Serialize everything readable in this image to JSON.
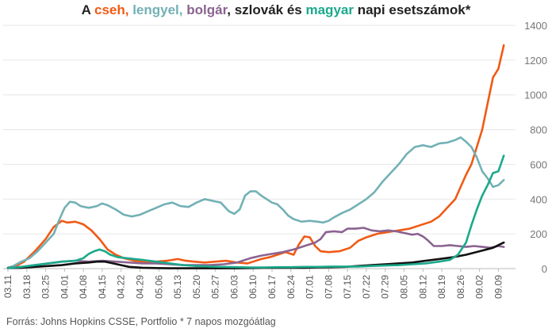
{
  "title": {
    "parts": [
      {
        "text": "A ",
        "color": "#222222"
      },
      {
        "text": "cseh, ",
        "color": "#f05a16"
      },
      {
        "text": "lengyel, ",
        "color": "#72b1b5"
      },
      {
        "text": "bolgár",
        "color": "#8a6390"
      },
      {
        "text": ", szlovák és ",
        "color": "#222222"
      },
      {
        "text": "magyar",
        "color": "#1ba98c"
      },
      {
        "text": " napi esetszámok*",
        "color": "#222222"
      }
    ]
  },
  "source": "Forrás: Johns Hopkins CSSE, Portfolio   * 7 napos mozgóátlag",
  "chart_data": {
    "type": "line",
    "x_tick_labels": [
      "03.11",
      "03.18",
      "03.25",
      "04.01",
      "04.08",
      "04.15",
      "04.22",
      "04.29",
      "05.06",
      "05.13",
      "05.20",
      "05.27",
      "06.03",
      "06.10",
      "06.17",
      "06.24",
      "07.01",
      "07.08",
      "07.15",
      "07.22",
      "07.29",
      "08.05",
      "08.12",
      "08.19",
      "08.26",
      "09.02",
      "09.09"
    ],
    "x_range_days": [
      0,
      186
    ],
    "ylim": [
      0,
      1400
    ],
    "y_ticks": [
      0,
      200,
      400,
      600,
      800,
      1000,
      1200,
      1400
    ],
    "y_axis_side": "right",
    "grid": "horizontal",
    "series": [
      {
        "name": "cseh",
        "color": "#f05a16",
        "points": [
          [
            0,
            5
          ],
          [
            3,
            15
          ],
          [
            6,
            40
          ],
          [
            10,
            100
          ],
          [
            14,
            170
          ],
          [
            17,
            240
          ],
          [
            20,
            275
          ],
          [
            22,
            265
          ],
          [
            25,
            270
          ],
          [
            28,
            255
          ],
          [
            31,
            220
          ],
          [
            34,
            170
          ],
          [
            37,
            110
          ],
          [
            40,
            80
          ],
          [
            43,
            60
          ],
          [
            47,
            45
          ],
          [
            51,
            40
          ],
          [
            55,
            40
          ],
          [
            59,
            45
          ],
          [
            63,
            55
          ],
          [
            66,
            45
          ],
          [
            69,
            40
          ],
          [
            73,
            35
          ],
          [
            77,
            40
          ],
          [
            81,
            45
          ],
          [
            85,
            35
          ],
          [
            89,
            30
          ],
          [
            91,
            40
          ],
          [
            94,
            55
          ],
          [
            97,
            65
          ],
          [
            100,
            80
          ],
          [
            103,
            95
          ],
          [
            106,
            80
          ],
          [
            108,
            140
          ],
          [
            110,
            185
          ],
          [
            112,
            180
          ],
          [
            114,
            130
          ],
          [
            116,
            100
          ],
          [
            119,
            95
          ],
          [
            123,
            100
          ],
          [
            127,
            120
          ],
          [
            130,
            160
          ],
          [
            133,
            180
          ],
          [
            137,
            200
          ],
          [
            141,
            210
          ],
          [
            145,
            220
          ],
          [
            149,
            230
          ],
          [
            153,
            250
          ],
          [
            157,
            270
          ],
          [
            160,
            300
          ],
          [
            163,
            350
          ],
          [
            166,
            400
          ],
          [
            168,
            470
          ],
          [
            170,
            540
          ],
          [
            172,
            600
          ],
          [
            174,
            700
          ],
          [
            176,
            800
          ],
          [
            178,
            950
          ],
          [
            180,
            1100
          ],
          [
            182,
            1150
          ],
          [
            184,
            1285
          ]
        ]
      },
      {
        "name": "lengyel",
        "color": "#72b1b5",
        "points": [
          [
            0,
            5
          ],
          [
            2,
            15
          ],
          [
            5,
            40
          ],
          [
            8,
            60
          ],
          [
            11,
            100
          ],
          [
            14,
            150
          ],
          [
            17,
            200
          ],
          [
            19,
            280
          ],
          [
            21,
            350
          ],
          [
            23,
            385
          ],
          [
            25,
            380
          ],
          [
            27,
            360
          ],
          [
            30,
            350
          ],
          [
            33,
            360
          ],
          [
            35,
            375
          ],
          [
            37,
            365
          ],
          [
            40,
            340
          ],
          [
            43,
            310
          ],
          [
            46,
            300
          ],
          [
            49,
            310
          ],
          [
            52,
            330
          ],
          [
            55,
            350
          ],
          [
            58,
            370
          ],
          [
            61,
            380
          ],
          [
            64,
            360
          ],
          [
            67,
            355
          ],
          [
            70,
            380
          ],
          [
            73,
            400
          ],
          [
            76,
            390
          ],
          [
            79,
            380
          ],
          [
            82,
            330
          ],
          [
            84,
            315
          ],
          [
            86,
            340
          ],
          [
            88,
            420
          ],
          [
            90,
            445
          ],
          [
            92,
            445
          ],
          [
            94,
            420
          ],
          [
            96,
            400
          ],
          [
            98,
            380
          ],
          [
            100,
            370
          ],
          [
            102,
            340
          ],
          [
            104,
            305
          ],
          [
            106,
            285
          ],
          [
            109,
            270
          ],
          [
            112,
            275
          ],
          [
            115,
            270
          ],
          [
            117,
            265
          ],
          [
            119,
            275
          ],
          [
            121,
            295
          ],
          [
            124,
            320
          ],
          [
            127,
            340
          ],
          [
            130,
            370
          ],
          [
            133,
            400
          ],
          [
            136,
            440
          ],
          [
            139,
            500
          ],
          [
            142,
            550
          ],
          [
            145,
            600
          ],
          [
            148,
            660
          ],
          [
            151,
            700
          ],
          [
            154,
            710
          ],
          [
            157,
            700
          ],
          [
            160,
            720
          ],
          [
            163,
            725
          ],
          [
            166,
            740
          ],
          [
            168,
            755
          ],
          [
            170,
            730
          ],
          [
            172,
            700
          ],
          [
            174,
            640
          ],
          [
            176,
            560
          ],
          [
            178,
            520
          ],
          [
            180,
            470
          ],
          [
            182,
            480
          ],
          [
            184,
            510
          ]
        ]
      },
      {
        "name": "bolgár",
        "color": "#8a6390",
        "points": [
          [
            0,
            5
          ],
          [
            5,
            10
          ],
          [
            10,
            20
          ],
          [
            15,
            30
          ],
          [
            20,
            40
          ],
          [
            25,
            45
          ],
          [
            30,
            40
          ],
          [
            35,
            45
          ],
          [
            40,
            40
          ],
          [
            45,
            35
          ],
          [
            50,
            30
          ],
          [
            55,
            30
          ],
          [
            60,
            25
          ],
          [
            65,
            20
          ],
          [
            70,
            20
          ],
          [
            75,
            20
          ],
          [
            80,
            25
          ],
          [
            85,
            35
          ],
          [
            90,
            60
          ],
          [
            94,
            75
          ],
          [
            98,
            85
          ],
          [
            102,
            95
          ],
          [
            106,
            110
          ],
          [
            110,
            130
          ],
          [
            114,
            150
          ],
          [
            116,
            170
          ],
          [
            118,
            210
          ],
          [
            121,
            215
          ],
          [
            124,
            210
          ],
          [
            126,
            230
          ],
          [
            129,
            230
          ],
          [
            132,
            235
          ],
          [
            135,
            220
          ],
          [
            138,
            215
          ],
          [
            141,
            220
          ],
          [
            144,
            215
          ],
          [
            147,
            205
          ],
          [
            150,
            195
          ],
          [
            152,
            200
          ],
          [
            154,
            185
          ],
          [
            156,
            160
          ],
          [
            158,
            130
          ],
          [
            161,
            130
          ],
          [
            164,
            135
          ],
          [
            167,
            130
          ],
          [
            170,
            125
          ],
          [
            173,
            130
          ],
          [
            176,
            125
          ],
          [
            179,
            120
          ],
          [
            182,
            130
          ],
          [
            184,
            125
          ]
        ]
      },
      {
        "name": "szlovák",
        "color": "#111111",
        "points": [
          [
            0,
            3
          ],
          [
            5,
            5
          ],
          [
            10,
            10
          ],
          [
            15,
            15
          ],
          [
            20,
            20
          ],
          [
            25,
            30
          ],
          [
            30,
            35
          ],
          [
            33,
            40
          ],
          [
            36,
            40
          ],
          [
            39,
            30
          ],
          [
            42,
            20
          ],
          [
            45,
            10
          ],
          [
            50,
            5
          ],
          [
            55,
            3
          ],
          [
            60,
            2
          ],
          [
            65,
            2
          ],
          [
            70,
            2
          ],
          [
            75,
            2
          ],
          [
            80,
            2
          ],
          [
            85,
            2
          ],
          [
            90,
            3
          ],
          [
            95,
            5
          ],
          [
            100,
            5
          ],
          [
            105,
            5
          ],
          [
            110,
            5
          ],
          [
            115,
            7
          ],
          [
            120,
            8
          ],
          [
            125,
            10
          ],
          [
            130,
            15
          ],
          [
            135,
            20
          ],
          [
            140,
            25
          ],
          [
            145,
            30
          ],
          [
            150,
            35
          ],
          [
            155,
            45
          ],
          [
            160,
            55
          ],
          [
            165,
            65
          ],
          [
            170,
            80
          ],
          [
            175,
            100
          ],
          [
            180,
            120
          ],
          [
            184,
            150
          ]
        ]
      },
      {
        "name": "magyar",
        "color": "#1ba98c",
        "points": [
          [
            0,
            3
          ],
          [
            5,
            10
          ],
          [
            10,
            20
          ],
          [
            15,
            30
          ],
          [
            20,
            40
          ],
          [
            25,
            45
          ],
          [
            28,
            60
          ],
          [
            30,
            85
          ],
          [
            32,
            100
          ],
          [
            34,
            110
          ],
          [
            36,
            100
          ],
          [
            38,
            80
          ],
          [
            41,
            65
          ],
          [
            44,
            60
          ],
          [
            47,
            55
          ],
          [
            50,
            50
          ],
          [
            55,
            40
          ],
          [
            60,
            30
          ],
          [
            65,
            20
          ],
          [
            70,
            15
          ],
          [
            75,
            12
          ],
          [
            80,
            10
          ],
          [
            85,
            8
          ],
          [
            90,
            7
          ],
          [
            95,
            7
          ],
          [
            100,
            8
          ],
          [
            105,
            8
          ],
          [
            110,
            10
          ],
          [
            115,
            10
          ],
          [
            120,
            12
          ],
          [
            125,
            12
          ],
          [
            130,
            12
          ],
          [
            135,
            15
          ],
          [
            140,
            18
          ],
          [
            145,
            20
          ],
          [
            150,
            25
          ],
          [
            155,
            30
          ],
          [
            160,
            40
          ],
          [
            164,
            50
          ],
          [
            167,
            80
          ],
          [
            170,
            150
          ],
          [
            172,
            250
          ],
          [
            174,
            340
          ],
          [
            176,
            420
          ],
          [
            178,
            480
          ],
          [
            180,
            550
          ],
          [
            182,
            560
          ],
          [
            184,
            650
          ]
        ]
      }
    ]
  }
}
